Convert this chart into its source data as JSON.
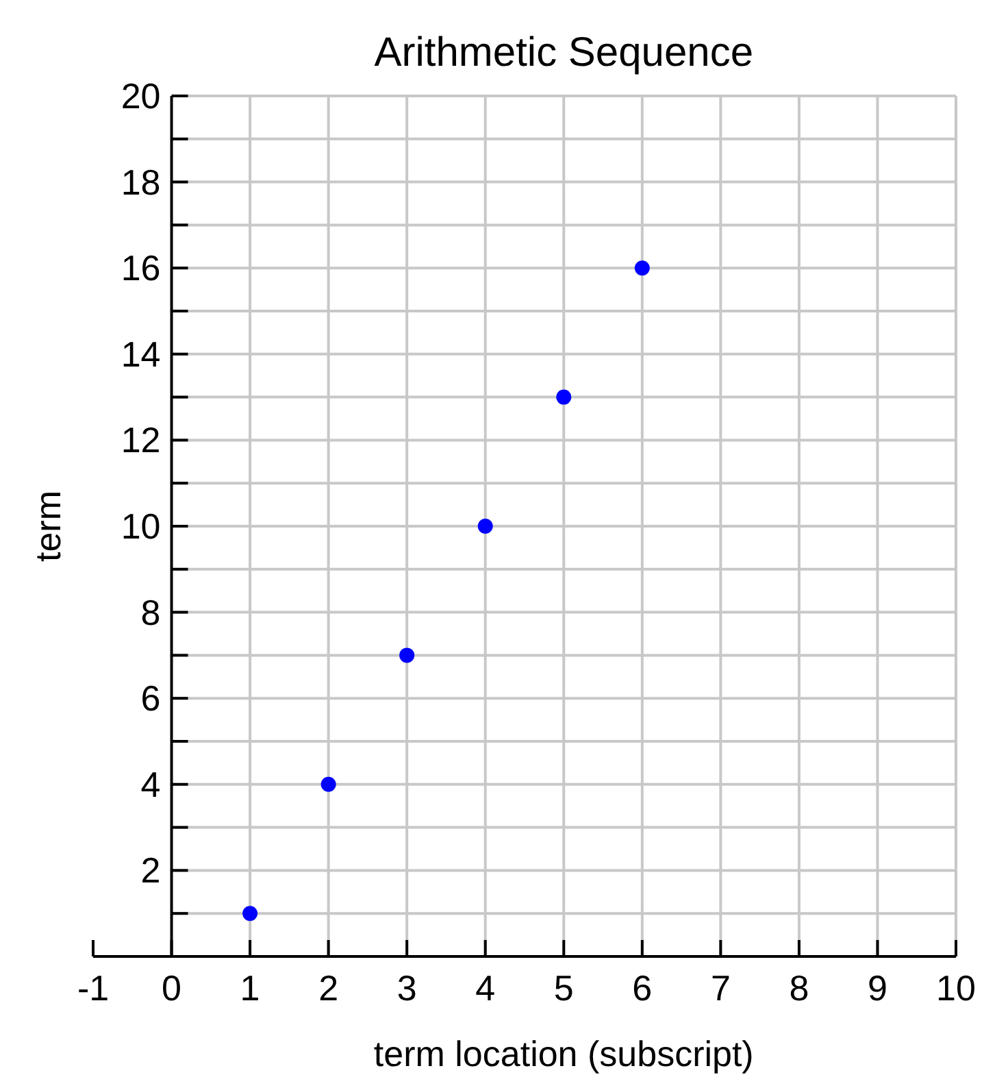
{
  "chart_data": {
    "type": "scatter",
    "title": "Arithmetic Sequence",
    "xlabel": "term location (subscript)",
    "ylabel": "term",
    "x": [
      1,
      2,
      3,
      4,
      5,
      6
    ],
    "values": [
      1,
      4,
      7,
      10,
      13,
      16
    ],
    "color": "#0000ff",
    "marker": "circle",
    "grid": true,
    "xlim": [
      -1,
      10
    ],
    "xticks": [
      -1,
      0,
      1,
      2,
      3,
      4,
      5,
      6,
      7,
      8,
      9,
      10
    ],
    "ylim": [
      0,
      20
    ],
    "yticks": [
      {
        "value": 0,
        "label": null
      },
      {
        "value": 1,
        "label": null
      },
      2,
      {
        "value": 3,
        "label": null
      },
      4,
      {
        "value": 5,
        "label": null
      },
      6,
      {
        "value": 7,
        "label": null
      },
      8,
      {
        "value": 9,
        "label": null
      },
      10,
      {
        "value": 11,
        "label": null
      },
      12,
      {
        "value": 13,
        "label": null
      },
      14,
      {
        "value": 15,
        "label": null
      },
      16,
      {
        "value": 17,
        "label": null
      },
      18,
      {
        "value": 19,
        "label": null
      },
      20
    ]
  }
}
